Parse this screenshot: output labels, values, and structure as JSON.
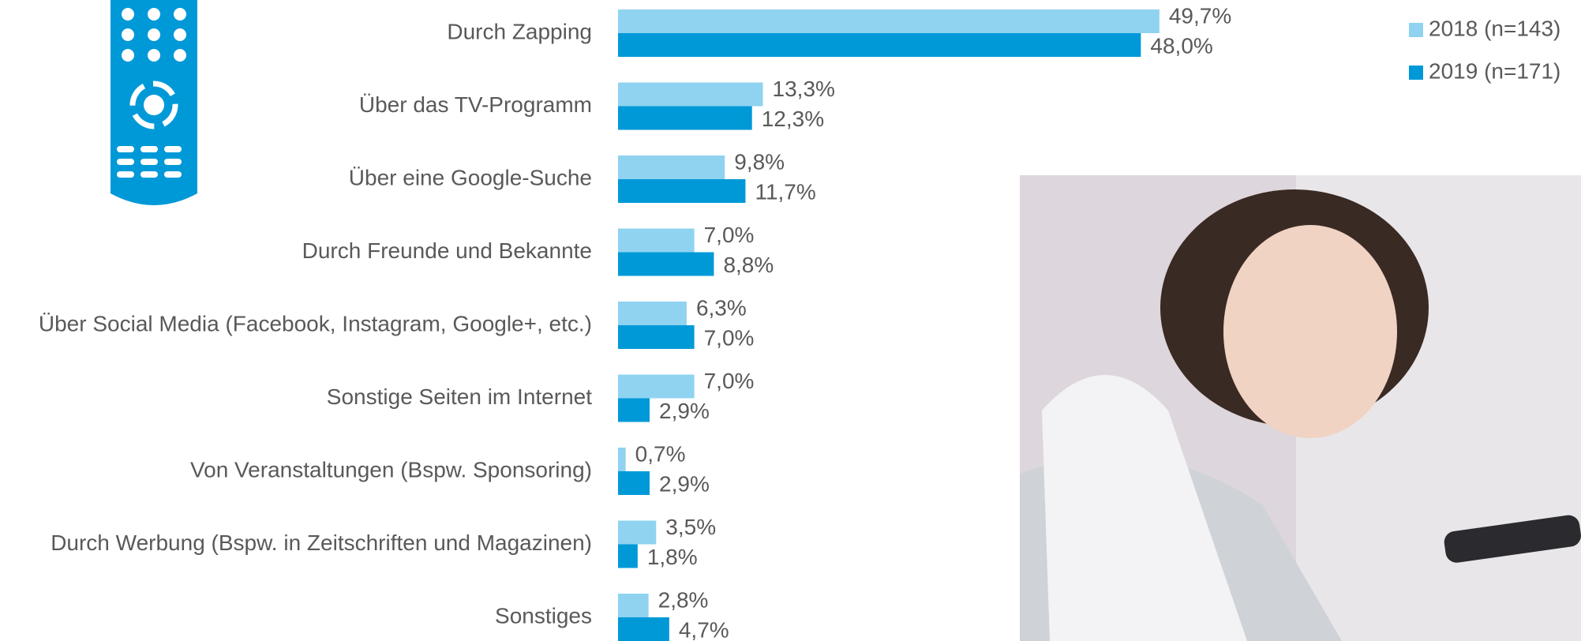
{
  "chart_data": {
    "type": "hbar",
    "categories": [
      "Durch Zapping",
      "Über das TV-Programm",
      "Über eine Google-Suche",
      "Durch Freunde und Bekannte",
      "Über Social Media (Facebook, Instagram, Google+, etc.)",
      "Sonstige Seiten im Internet",
      "Von Veranstaltungen (Bspw. Sponsoring)",
      "Durch Werbung (Bspw. in Zeitschriften und Magazinen)",
      "Sonstiges"
    ],
    "series": [
      {
        "name": "2018 (n=143)",
        "color": "#8fd3f0",
        "values": [
          49.7,
          13.3,
          9.8,
          7.0,
          6.3,
          7.0,
          0.7,
          3.5,
          2.8
        ],
        "value_labels": [
          "49,7%",
          "13,3%",
          "9,8%",
          "7,0%",
          "6,3%",
          "7,0%",
          "0,7%",
          "3,5%",
          "2,8%"
        ]
      },
      {
        "name": "2019 (n=171)",
        "color": "#0099d8",
        "values": [
          48.0,
          12.3,
          11.7,
          8.8,
          7.0,
          2.9,
          2.9,
          1.8,
          4.7
        ],
        "value_labels": [
          "48,0%",
          "12,3%",
          "11,7%",
          "8,8%",
          "7,0%",
          "2,9%",
          "2,9%",
          "1,8%",
          "4,7%"
        ]
      }
    ],
    "legend": "top-right"
  }
}
